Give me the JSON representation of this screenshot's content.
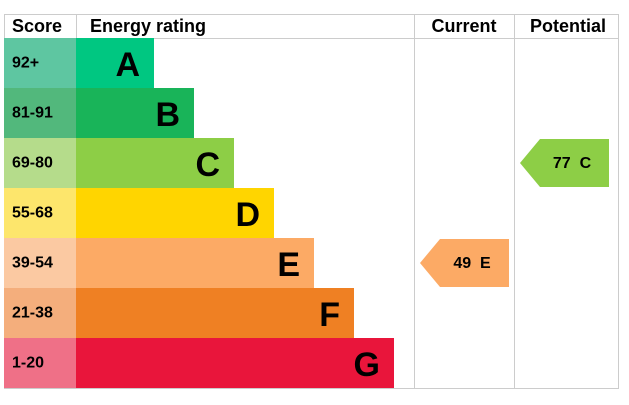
{
  "header": {
    "score": "Score",
    "energy_rating": "Energy rating",
    "current": "Current",
    "potential": "Potential"
  },
  "bands": [
    {
      "range": "92+",
      "letter": "A",
      "color": "#00c781",
      "score_color": "#5ec6a1"
    },
    {
      "range": "81-91",
      "letter": "B",
      "color": "#19b459",
      "score_color": "#52b87c"
    },
    {
      "range": "69-80",
      "letter": "C",
      "color": "#8dce46",
      "score_color": "#b5dc8b"
    },
    {
      "range": "55-68",
      "letter": "D",
      "color": "#ffd500",
      "score_color": "#fde66c"
    },
    {
      "range": "39-54",
      "letter": "E",
      "color": "#fcaa65",
      "score_color": "#fbc9a2"
    },
    {
      "range": "21-38",
      "letter": "F",
      "color": "#ef8023",
      "score_color": "#f4ae7c"
    },
    {
      "range": "1-20",
      "letter": "G",
      "color": "#e9153b",
      "score_color": "#ef7087"
    }
  ],
  "current": {
    "score": 49,
    "rating": "E"
  },
  "potential": {
    "score": 77,
    "rating": "C"
  }
}
